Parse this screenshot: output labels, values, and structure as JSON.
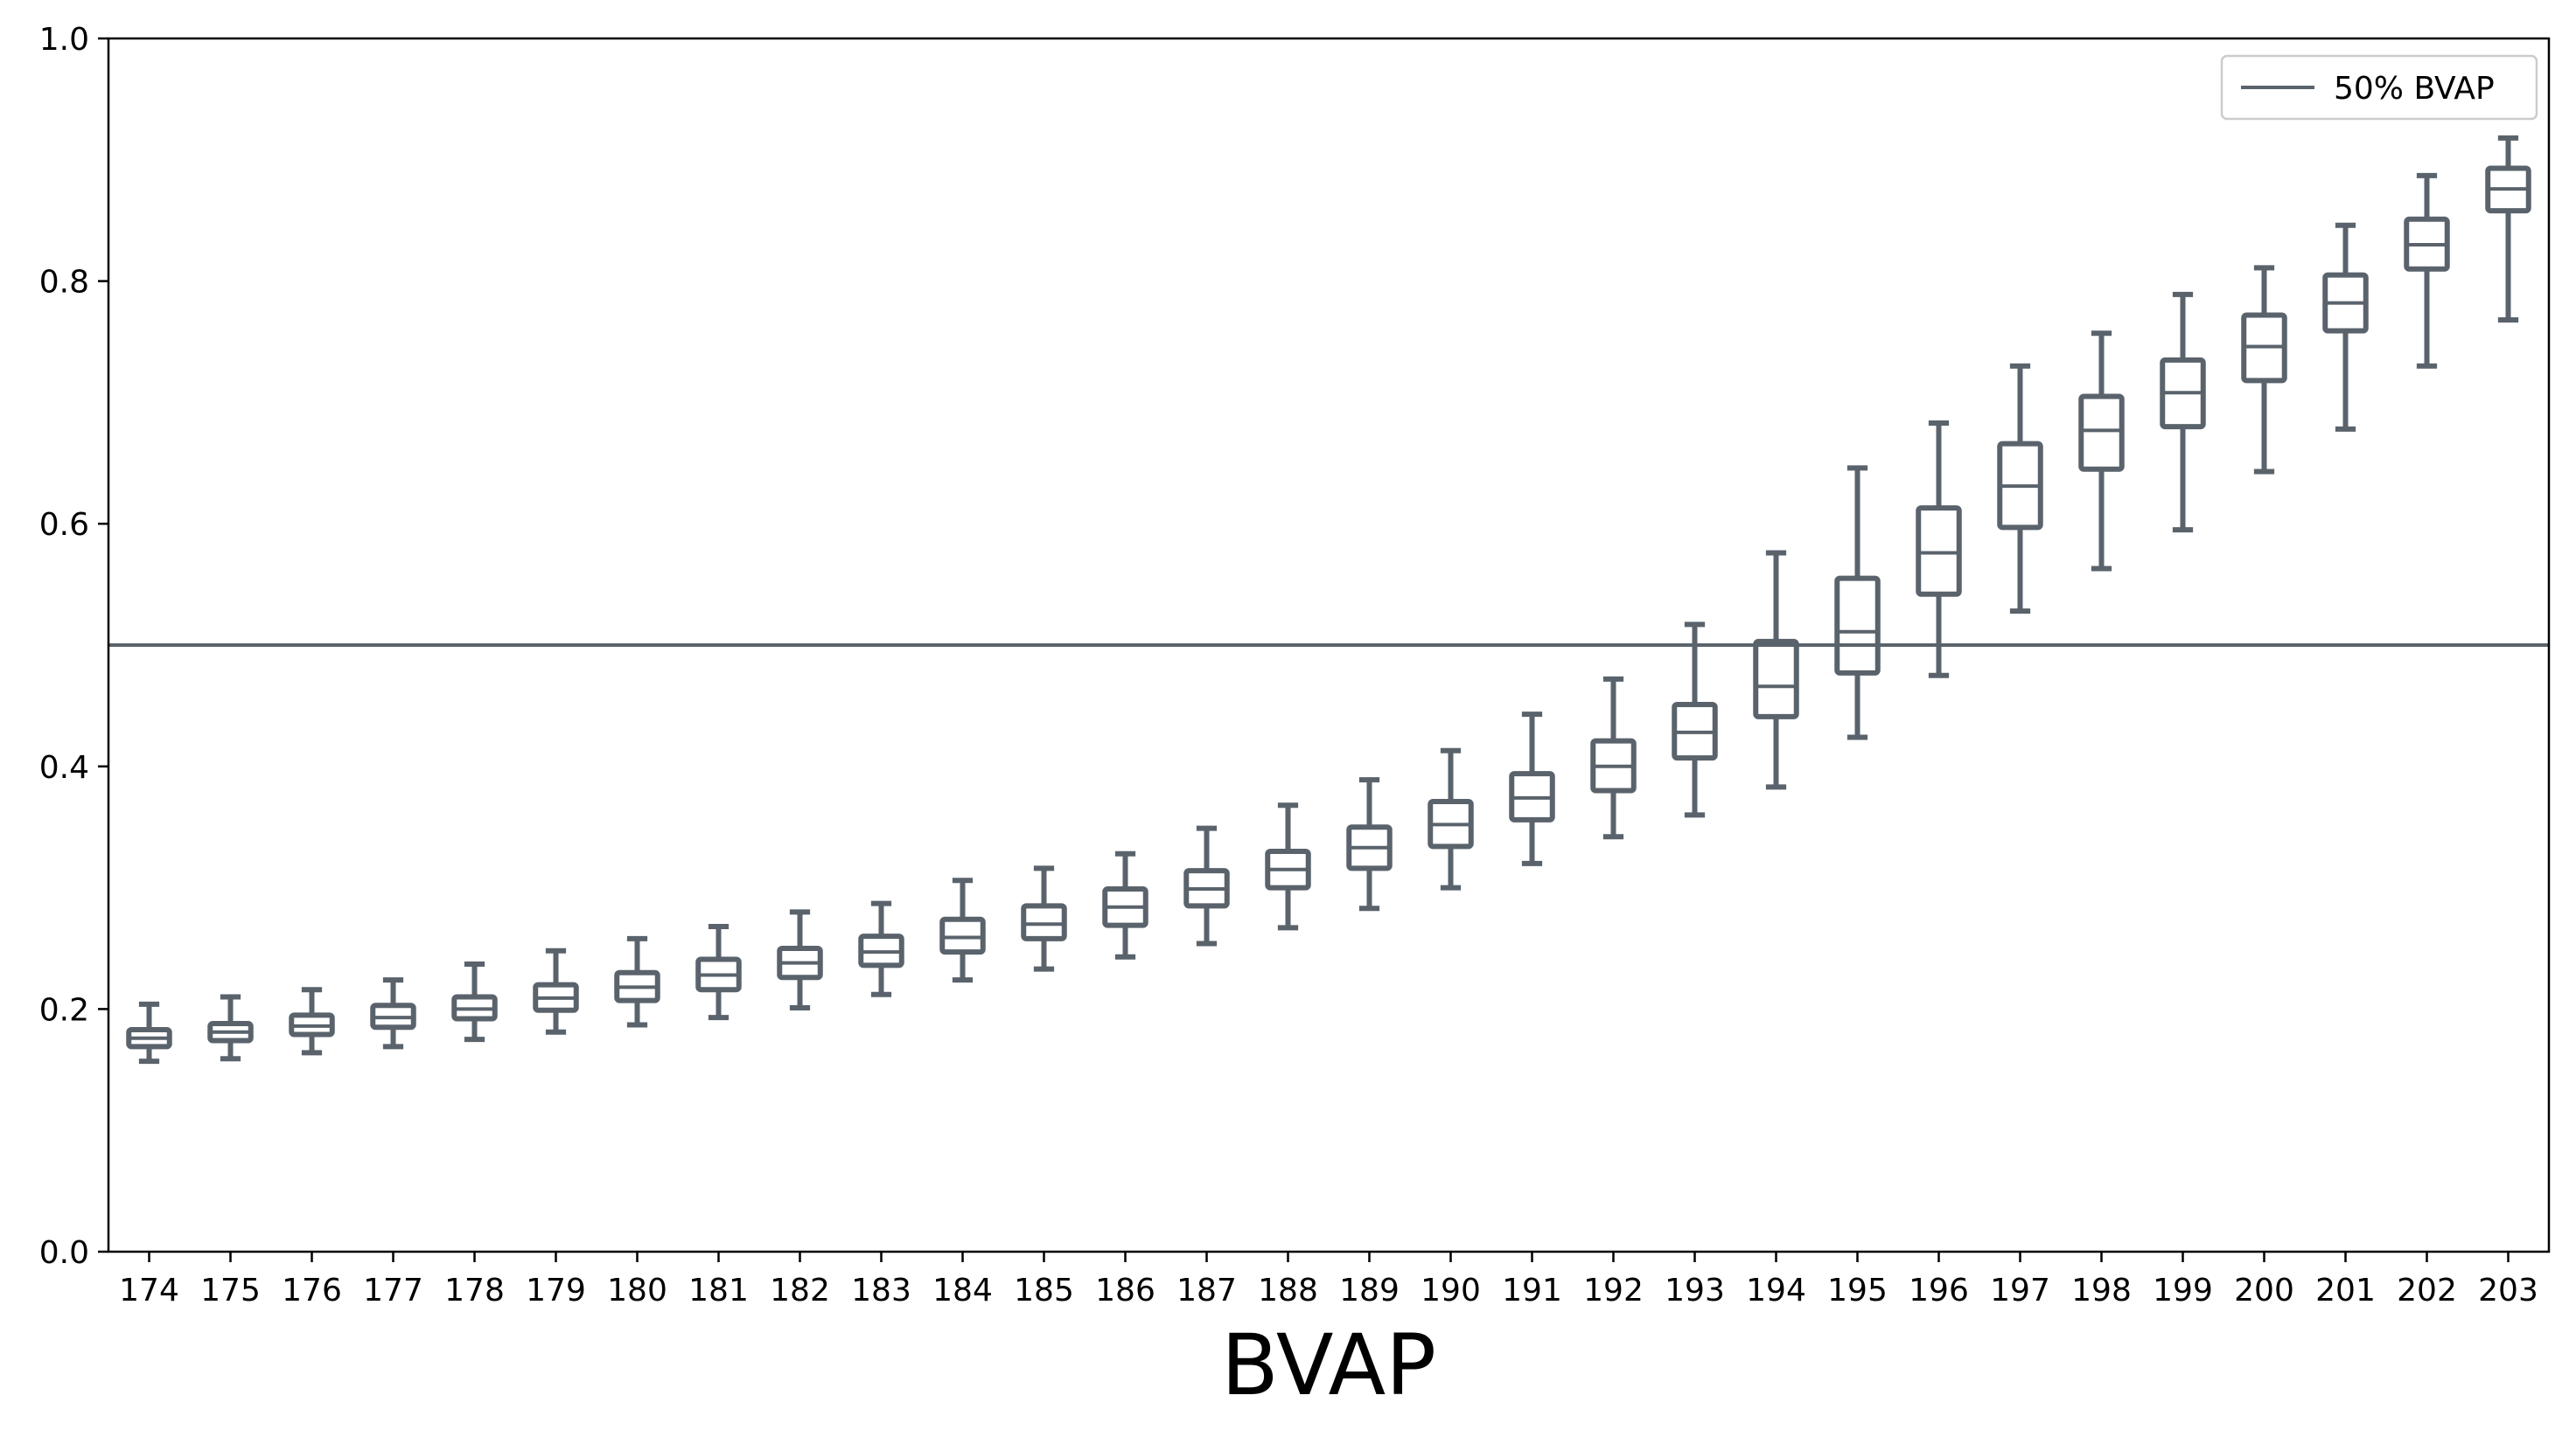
{
  "chart_data": {
    "type": "boxplot",
    "xlabel": "BVAP",
    "ylabel": "",
    "title": "",
    "ylim": [
      0.0,
      1.0
    ],
    "yticks": [
      "0.0",
      "0.2",
      "0.4",
      "0.6",
      "0.8",
      "1.0"
    ],
    "grid": false,
    "box_color": "#5a636c",
    "reference_line": {
      "value": 0.5,
      "label": "50% BVAP",
      "color": "#5a636c"
    },
    "legend": {
      "position": "top-right",
      "entries": [
        "50% BVAP"
      ]
    },
    "categories": [
      "174",
      "175",
      "176",
      "177",
      "178",
      "179",
      "180",
      "181",
      "182",
      "183",
      "184",
      "185",
      "186",
      "187",
      "188",
      "189",
      "190",
      "191",
      "192",
      "193",
      "194",
      "195",
      "196",
      "197",
      "198",
      "199",
      "200",
      "201",
      "202",
      "203"
    ],
    "boxes": [
      {
        "whisker_low": 0.157,
        "q1": 0.169,
        "median": 0.176,
        "q3": 0.183,
        "whisker_high": 0.204
      },
      {
        "whisker_low": 0.159,
        "q1": 0.174,
        "median": 0.181,
        "q3": 0.188,
        "whisker_high": 0.21
      },
      {
        "whisker_low": 0.164,
        "q1": 0.179,
        "median": 0.186,
        "q3": 0.195,
        "whisker_high": 0.216
      },
      {
        "whisker_low": 0.169,
        "q1": 0.185,
        "median": 0.193,
        "q3": 0.203,
        "whisker_high": 0.224
      },
      {
        "whisker_low": 0.175,
        "q1": 0.192,
        "median": 0.2,
        "q3": 0.21,
        "whisker_high": 0.237
      },
      {
        "whisker_low": 0.181,
        "q1": 0.199,
        "median": 0.209,
        "q3": 0.22,
        "whisker_high": 0.248
      },
      {
        "whisker_low": 0.187,
        "q1": 0.207,
        "median": 0.218,
        "q3": 0.23,
        "whisker_high": 0.258
      },
      {
        "whisker_low": 0.193,
        "q1": 0.216,
        "median": 0.228,
        "q3": 0.241,
        "whisker_high": 0.268
      },
      {
        "whisker_low": 0.201,
        "q1": 0.226,
        "median": 0.238,
        "q3": 0.25,
        "whisker_high": 0.28
      },
      {
        "whisker_low": 0.212,
        "q1": 0.236,
        "median": 0.247,
        "q3": 0.26,
        "whisker_high": 0.287
      },
      {
        "whisker_low": 0.224,
        "q1": 0.247,
        "median": 0.259,
        "q3": 0.274,
        "whisker_high": 0.306
      },
      {
        "whisker_low": 0.233,
        "q1": 0.258,
        "median": 0.27,
        "q3": 0.285,
        "whisker_high": 0.316
      },
      {
        "whisker_low": 0.243,
        "q1": 0.269,
        "median": 0.284,
        "q3": 0.299,
        "whisker_high": 0.328
      },
      {
        "whisker_low": 0.254,
        "q1": 0.285,
        "median": 0.299,
        "q3": 0.314,
        "whisker_high": 0.349
      },
      {
        "whisker_low": 0.267,
        "q1": 0.3,
        "median": 0.315,
        "q3": 0.33,
        "whisker_high": 0.368
      },
      {
        "whisker_low": 0.283,
        "q1": 0.316,
        "median": 0.333,
        "q3": 0.35,
        "whisker_high": 0.389
      },
      {
        "whisker_low": 0.3,
        "q1": 0.334,
        "median": 0.352,
        "q3": 0.371,
        "whisker_high": 0.413
      },
      {
        "whisker_low": 0.32,
        "q1": 0.356,
        "median": 0.374,
        "q3": 0.394,
        "whisker_high": 0.443
      },
      {
        "whisker_low": 0.342,
        "q1": 0.38,
        "median": 0.4,
        "q3": 0.421,
        "whisker_high": 0.472
      },
      {
        "whisker_low": 0.36,
        "q1": 0.407,
        "median": 0.428,
        "q3": 0.451,
        "whisker_high": 0.517
      },
      {
        "whisker_low": 0.383,
        "q1": 0.441,
        "median": 0.466,
        "q3": 0.503,
        "whisker_high": 0.576
      },
      {
        "whisker_low": 0.424,
        "q1": 0.477,
        "median": 0.511,
        "q3": 0.555,
        "whisker_high": 0.646
      },
      {
        "whisker_low": 0.475,
        "q1": 0.542,
        "median": 0.576,
        "q3": 0.613,
        "whisker_high": 0.683
      },
      {
        "whisker_low": 0.528,
        "q1": 0.597,
        "median": 0.631,
        "q3": 0.666,
        "whisker_high": 0.73
      },
      {
        "whisker_low": 0.563,
        "q1": 0.645,
        "median": 0.677,
        "q3": 0.705,
        "whisker_high": 0.757
      },
      {
        "whisker_low": 0.595,
        "q1": 0.68,
        "median": 0.708,
        "q3": 0.735,
        "whisker_high": 0.789
      },
      {
        "whisker_low": 0.643,
        "q1": 0.718,
        "median": 0.746,
        "q3": 0.772,
        "whisker_high": 0.811
      },
      {
        "whisker_low": 0.678,
        "q1": 0.759,
        "median": 0.782,
        "q3": 0.805,
        "whisker_high": 0.846
      },
      {
        "whisker_low": 0.73,
        "q1": 0.81,
        "median": 0.83,
        "q3": 0.851,
        "whisker_high": 0.887
      },
      {
        "whisker_low": 0.768,
        "q1": 0.858,
        "median": 0.876,
        "q3": 0.893,
        "whisker_high": 0.918
      }
    ]
  }
}
